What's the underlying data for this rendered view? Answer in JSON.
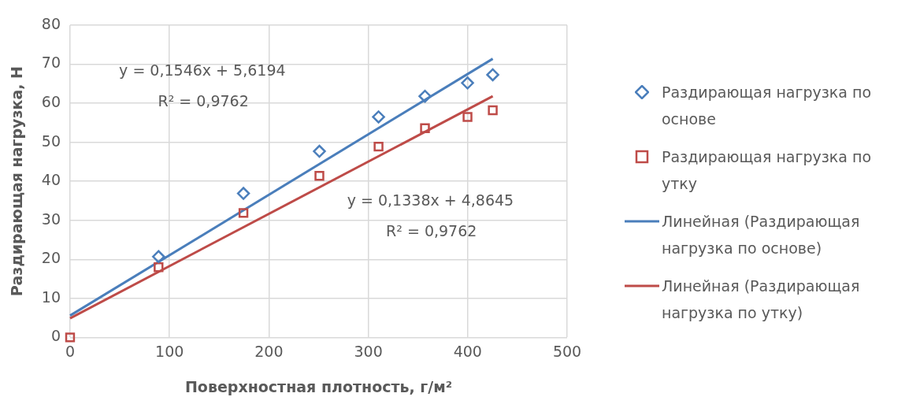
{
  "chart_data": {
    "type": "scatter",
    "xlabel": "Поверхностная плотность, г/м²",
    "ylabel": "Раздирающая нагрузка, Н",
    "xlim": [
      0,
      500
    ],
    "xticks": [
      0,
      100,
      200,
      300,
      400,
      500
    ],
    "ylim": [
      0,
      80
    ],
    "yticks": [
      0,
      10,
      20,
      30,
      40,
      50,
      60,
      70,
      80
    ],
    "grid": true,
    "legend": "right",
    "series": [
      {
        "name": "Раздирающая нагрузка по основе",
        "type": "scatter",
        "marker": "diamond",
        "color": "#4a7ebb",
        "x": [
          89,
          174.4,
          250.8,
          310.3,
          357,
          399.8,
          425.2
        ],
        "values": [
          20.7,
          36.9,
          47.7,
          56.5,
          61.8,
          65.2,
          67.3
        ]
      },
      {
        "name": "Раздирающая нагрузка по утку",
        "type": "scatter",
        "marker": "square",
        "color": "#be4b48",
        "x": [
          0,
          89,
          174.4,
          250.8,
          310.3,
          357,
          399.8,
          425.2
        ],
        "values": [
          0,
          18.0,
          31.9,
          41.4,
          48.9,
          53.6,
          56.5,
          58.2
        ]
      },
      {
        "name": "Линейная (Раздирающая нагрузка по основе)",
        "type": "line",
        "marker": "none",
        "line_style": "solid",
        "color": "#4a7ebb",
        "x": [
          0,
          425.2
        ],
        "values": [
          5.6,
          71.4
        ]
      },
      {
        "name": "Линейная (Раздирающая нагрузка по утку)",
        "type": "line",
        "marker": "none",
        "line_style": "solid",
        "color": "#be4b48",
        "x": [
          0,
          425.2
        ],
        "values": [
          4.9,
          61.8
        ]
      }
    ],
    "annotations": [
      "y = 0,1546x + 5,6194",
      "R² = 0,9762",
      "y = 0,1338x + 4,8645",
      "R² = 0,9762"
    ]
  }
}
